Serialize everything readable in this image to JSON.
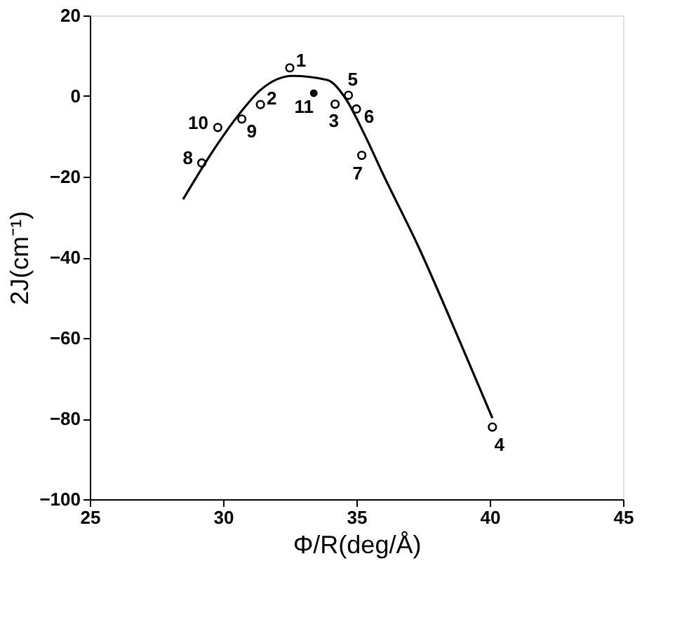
{
  "chart_data": {
    "type": "scatter",
    "xlabel": "Φ/R(deg/Å)",
    "ylabel": "2J(cm⁻¹)",
    "xlim": [
      25,
      45
    ],
    "xticks": [
      25,
      30,
      35,
      40,
      45
    ],
    "ylim": [
      -100,
      20
    ],
    "yticks": [
      -100,
      -80,
      -60,
      -40,
      -20,
      0,
      20
    ],
    "grid": false,
    "marker": "circle",
    "series": [
      {
        "type": "line",
        "color": "#000000",
        "marker": "none",
        "line_style": "solid",
        "x": [
          28.5,
          29.7,
          30.6,
          31.4,
          32.6,
          33.9,
          34.6,
          35.3,
          36.0,
          37.3,
          38.9,
          40.1
        ],
        "values": [
          -25.6,
          -12.8,
          -4.5,
          1.5,
          5.0,
          4.0,
          -0.7,
          -9.5,
          -19.4,
          -37,
          -61.2,
          -79.9
        ]
      },
      {
        "color": "#000000",
        "x": [
          32.5,
          31.4,
          34.2,
          40.1,
          34.7,
          35.0,
          35.2,
          29.2,
          30.7,
          29.8
        ],
        "values": [
          7.0,
          -2.1,
          -2.0,
          -82.1,
          0.2,
          -3.2,
          -14.7,
          -16.6,
          -5.7,
          -7.8
        ]
      },
      {
        "color": "#000000",
        "x": [
          33.4
        ],
        "values": [
          0.7
        ]
      }
    ],
    "annotations": [
      {
        "text": "1",
        "x": 32.5,
        "y": 7.0
      },
      {
        "text": "2",
        "x": 31.4,
        "y": -2.1
      },
      {
        "text": "3",
        "x": 34.2,
        "y": -2.0
      },
      {
        "text": "4",
        "x": 40.1,
        "y": -82.1
      },
      {
        "text": "5",
        "x": 34.7,
        "y": 0.2
      },
      {
        "text": "6",
        "x": 35.0,
        "y": -3.2
      },
      {
        "text": "7",
        "x": 35.2,
        "y": -14.7
      },
      {
        "text": "8",
        "x": 29.2,
        "y": -16.6
      },
      {
        "text": "9",
        "x": 30.7,
        "y": -5.7
      },
      {
        "text": "10",
        "x": 29.8,
        "y": -7.8
      },
      {
        "text": "11",
        "x": 33.4,
        "y": 0.7
      }
    ]
  }
}
